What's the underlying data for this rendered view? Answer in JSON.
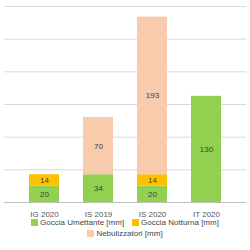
{
  "chart_data": {
    "type": "bar",
    "stacked": true,
    "data_labels": true,
    "grid": true,
    "tick_labels": "x",
    "legend": "bottom",
    "categories": [
      "IG 2020",
      "IS 2019",
      "IS 2020",
      "IT 2020"
    ],
    "series": [
      {
        "name": "Goccia Umettante [mm]",
        "color": "#92d050",
        "values": [
          20,
          34,
          20,
          130
        ]
      },
      {
        "name": "Goccia Notturna [mm]",
        "color": "#ffc000",
        "values": [
          14,
          null,
          14,
          null
        ]
      },
      {
        "name": "Nebulizzatori [mm]",
        "color": "#f8cbad",
        "values": [
          null,
          70,
          193,
          null
        ]
      }
    ],
    "ylim": [
      0,
      240
    ],
    "yticks": [
      0,
      40,
      80,
      120,
      160,
      200,
      240
    ]
  }
}
